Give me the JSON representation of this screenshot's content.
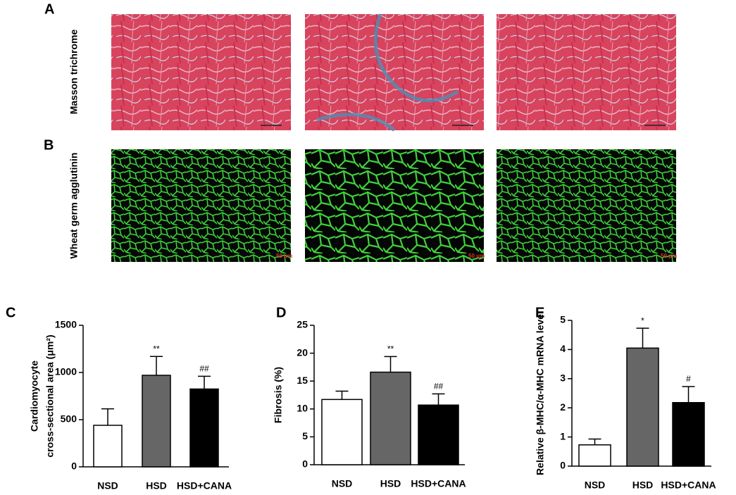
{
  "panels": [
    {
      "label": "A",
      "row_label": "Masson trichrome"
    },
    {
      "label": "B",
      "row_label": "Wheat germ agglutinin",
      "scale_label": "50 μm"
    }
  ],
  "chart_data": [
    {
      "type": "bar",
      "panel": "C",
      "ylabel": [
        "Cardiomyocyte",
        "cross-sectional area (μm²)"
      ],
      "categories": [
        "NSD",
        "HSD",
        "HSD+CANA"
      ],
      "values": [
        440,
        970,
        825
      ],
      "errors": [
        175,
        200,
        135
      ],
      "annotations": [
        null,
        "**",
        "##"
      ],
      "colors": [
        "#ffffff",
        "#666666",
        "#000000"
      ],
      "ylim": [
        0,
        1500
      ],
      "yticks": [
        0,
        500,
        1000,
        1500
      ]
    },
    {
      "type": "bar",
      "panel": "D",
      "ylabel": [
        "Fibrosis (%)"
      ],
      "categories": [
        "NSD",
        "HSD",
        "HSD+CANA"
      ],
      "values": [
        11.7,
        16.6,
        10.7
      ],
      "errors": [
        1.5,
        2.8,
        2.0
      ],
      "annotations": [
        null,
        "**",
        "##"
      ],
      "colors": [
        "#ffffff",
        "#666666",
        "#000000"
      ],
      "ylim": [
        0,
        25
      ],
      "yticks": [
        0,
        5,
        10,
        15,
        20,
        25
      ]
    },
    {
      "type": "bar",
      "panel": "E",
      "ylabel": [
        "Relative β-MHC/α-MHC mRNA level"
      ],
      "categories": [
        "NSD",
        "HSD",
        "HSD+CANA"
      ],
      "values": [
        0.73,
        4.05,
        2.18
      ],
      "errors": [
        0.2,
        0.68,
        0.55
      ],
      "annotations": [
        null,
        "*",
        "#"
      ],
      "colors": [
        "#ffffff",
        "#666666",
        "#000000"
      ],
      "ylim": [
        0,
        5
      ],
      "yticks": [
        0,
        1,
        2,
        3,
        4,
        5
      ]
    }
  ]
}
